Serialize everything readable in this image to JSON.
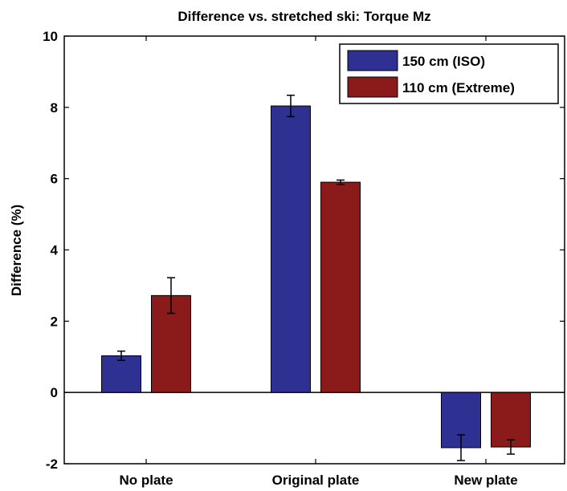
{
  "chart_data": {
    "type": "bar",
    "title": "Difference vs. stretched ski: Torque Mz",
    "xlabel": "",
    "ylabel": "Difference (%)",
    "categories": [
      "No plate",
      "Original plate",
      "New plate"
    ],
    "ylim": [
      -2,
      10
    ],
    "yticks": [
      "-2",
      "0",
      "2",
      "4",
      "6",
      "8",
      "10"
    ],
    "grid": false,
    "legend_position": "top-right",
    "series": [
      {
        "name": "150 cm (ISO)",
        "color": "#2e3192",
        "values": [
          1.03,
          8.04,
          -1.55
        ],
        "errors": [
          0.13,
          0.3,
          0.36
        ]
      },
      {
        "name": "110 cm (Extreme)",
        "color": "#8b1a1a",
        "values": [
          2.72,
          5.9,
          -1.53
        ],
        "errors": [
          0.5,
          0.06,
          0.2
        ]
      }
    ]
  }
}
